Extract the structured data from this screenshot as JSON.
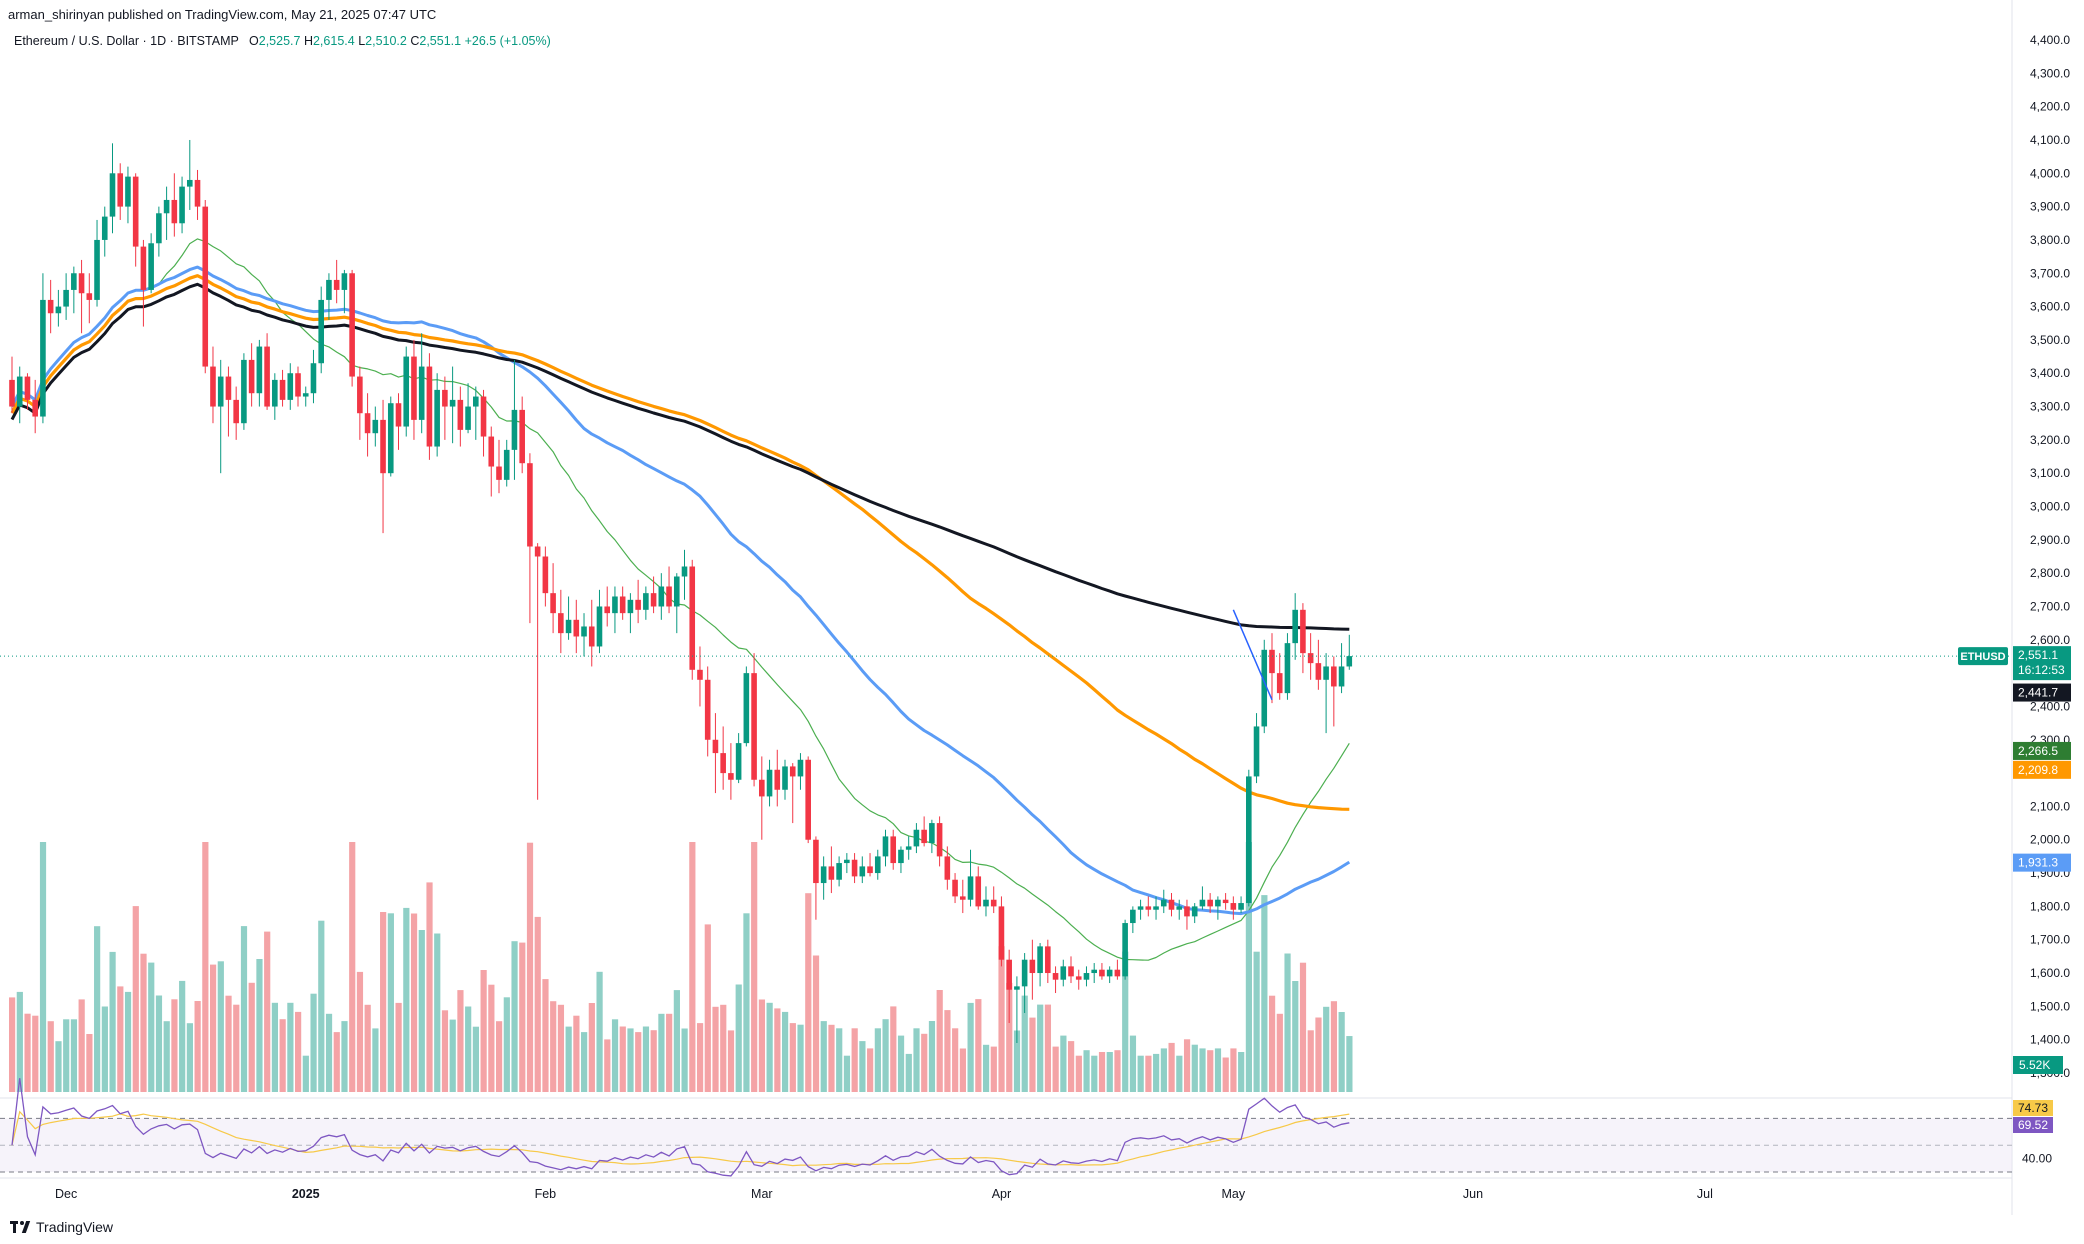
{
  "header": {
    "published": "arman_shirinyan published on TradingView.com, May 21, 2025 07:47 UTC",
    "symbol": "Ethereum / U.S. Dollar · 1D · BITSTAMP",
    "o_label": "O",
    "o": "2,525.7",
    "h_label": "H",
    "h": "2,615.4",
    "l_label": "L",
    "l": "2,510.2",
    "c_label": "C",
    "c": "2,551.1",
    "change": "+26.5 (+1.05%)"
  },
  "footer": {
    "brand": "TradingView"
  },
  "colors": {
    "up": "#089981",
    "down": "#f23645",
    "vol_up": "#8fcfc6",
    "vol_down": "#f4a3a6",
    "ma_green": "#4caf50",
    "ma_blue": "#5b9cf6",
    "ma_orange": "#ff9800",
    "ma_black": "#131722",
    "rsi": "#7e57c2",
    "rsi_ma": "#f7c948",
    "trendline": "#2962ff"
  },
  "chart_data": {
    "type": "candlestick",
    "title": "Ethereum / U.S. Dollar · 1D · BITSTAMP",
    "ylim": [
      1200,
      4450
    ],
    "y_ticks": [
      "4,400.0",
      "4,300.0",
      "4,200.0",
      "4,100.0",
      "4,000.0",
      "3,900.0",
      "3,800.0",
      "3,700.0",
      "3,600.0",
      "3,500.0",
      "3,400.0",
      "3,300.0",
      "3,200.0",
      "3,100.0",
      "3,000.0",
      "2,900.0",
      "2,800.0",
      "2,700.0",
      "2,600.0",
      "2,500.0",
      "2,400.0",
      "2,300.0",
      "2,200.0",
      "2,100.0",
      "2,000.0",
      "1,900.0",
      "1,800.0",
      "1,700.0",
      "1,600.0",
      "1,500.0",
      "1,400.0",
      "1,300.0"
    ],
    "x_ticks": [
      {
        "label": "Dec",
        "day": 7
      },
      {
        "label": "2025",
        "day": 38
      },
      {
        "label": "Feb",
        "day": 69
      },
      {
        "label": "Mar",
        "day": 97
      },
      {
        "label": "Apr",
        "day": 128
      },
      {
        "label": "May",
        "day": 158
      },
      {
        "label": "Jun",
        "day": 189
      },
      {
        "label": "Jul",
        "day": 219
      }
    ],
    "candles": [
      [
        3380,
        3450,
        3280,
        3300
      ],
      [
        3300,
        3420,
        3250,
        3390
      ],
      [
        3390,
        3400,
        3290,
        3320
      ],
      [
        3320,
        3380,
        3220,
        3270
      ],
      [
        3270,
        3700,
        3250,
        3620
      ],
      [
        3620,
        3680,
        3520,
        3580
      ],
      [
        3580,
        3650,
        3540,
        3600
      ],
      [
        3600,
        3700,
        3560,
        3650
      ],
      [
        3650,
        3720,
        3580,
        3700
      ],
      [
        3700,
        3740,
        3520,
        3640
      ],
      [
        3640,
        3700,
        3550,
        3620
      ],
      [
        3620,
        3860,
        3600,
        3800
      ],
      [
        3800,
        3900,
        3750,
        3870
      ],
      [
        3870,
        4090,
        3820,
        4000
      ],
      [
        4000,
        4030,
        3860,
        3900
      ],
      [
        3900,
        4020,
        3850,
        3990
      ],
      [
        3990,
        4000,
        3720,
        3780
      ],
      [
        3780,
        3800,
        3540,
        3650
      ],
      [
        3650,
        3820,
        3640,
        3790
      ],
      [
        3790,
        3900,
        3750,
        3880
      ],
      [
        3880,
        3960,
        3800,
        3920
      ],
      [
        3920,
        4000,
        3810,
        3850
      ],
      [
        3850,
        3990,
        3820,
        3960
      ],
      [
        3960,
        4100,
        3890,
        3980
      ],
      [
        3980,
        4010,
        3860,
        3900
      ],
      [
        3900,
        3920,
        3400,
        3420
      ],
      [
        3420,
        3480,
        3250,
        3300
      ],
      [
        3300,
        3440,
        3100,
        3390
      ],
      [
        3390,
        3420,
        3210,
        3320
      ],
      [
        3320,
        3360,
        3200,
        3250
      ],
      [
        3250,
        3460,
        3230,
        3440
      ],
      [
        3440,
        3490,
        3300,
        3340
      ],
      [
        3340,
        3500,
        3300,
        3480
      ],
      [
        3480,
        3520,
        3290,
        3300
      ],
      [
        3300,
        3400,
        3260,
        3380
      ],
      [
        3380,
        3410,
        3300,
        3320
      ],
      [
        3320,
        3430,
        3290,
        3400
      ],
      [
        3400,
        3420,
        3300,
        3330
      ],
      [
        3330,
        3360,
        3300,
        3340
      ],
      [
        3340,
        3470,
        3310,
        3430
      ],
      [
        3430,
        3660,
        3400,
        3620
      ],
      [
        3620,
        3700,
        3560,
        3680
      ],
      [
        3680,
        3740,
        3610,
        3650
      ],
      [
        3650,
        3710,
        3580,
        3700
      ],
      [
        3700,
        3710,
        3360,
        3390
      ],
      [
        3390,
        3420,
        3200,
        3280
      ],
      [
        3280,
        3340,
        3150,
        3220
      ],
      [
        3220,
        3300,
        3180,
        3260
      ],
      [
        3260,
        3320,
        2920,
        3100
      ],
      [
        3100,
        3330,
        3090,
        3310
      ],
      [
        3310,
        3340,
        3170,
        3240
      ],
      [
        3240,
        3480,
        3210,
        3450
      ],
      [
        3450,
        3500,
        3200,
        3260
      ],
      [
        3260,
        3520,
        3220,
        3420
      ],
      [
        3420,
        3460,
        3140,
        3180
      ],
      [
        3180,
        3400,
        3150,
        3350
      ],
      [
        3350,
        3390,
        3200,
        3300
      ],
      [
        3300,
        3420,
        3190,
        3320
      ],
      [
        3320,
        3360,
        3180,
        3230
      ],
      [
        3230,
        3370,
        3220,
        3300
      ],
      [
        3300,
        3360,
        3200,
        3330
      ],
      [
        3330,
        3350,
        3150,
        3210
      ],
      [
        3210,
        3240,
        3030,
        3120
      ],
      [
        3120,
        3200,
        3040,
        3080
      ],
      [
        3080,
        3200,
        3060,
        3170
      ],
      [
        3170,
        3440,
        3080,
        3290
      ],
      [
        3290,
        3330,
        3100,
        3130
      ],
      [
        3130,
        3160,
        2650,
        2880
      ],
      [
        2880,
        2890,
        2120,
        2850
      ],
      [
        2850,
        2880,
        2700,
        2740
      ],
      [
        2740,
        2830,
        2620,
        2680
      ],
      [
        2680,
        2750,
        2560,
        2620
      ],
      [
        2620,
        2730,
        2600,
        2660
      ],
      [
        2660,
        2720,
        2560,
        2610
      ],
      [
        2610,
        2680,
        2550,
        2640
      ],
      [
        2640,
        2720,
        2520,
        2580
      ],
      [
        2580,
        2750,
        2560,
        2700
      ],
      [
        2700,
        2760,
        2640,
        2680
      ],
      [
        2680,
        2760,
        2620,
        2730
      ],
      [
        2730,
        2760,
        2660,
        2680
      ],
      [
        2680,
        2740,
        2620,
        2720
      ],
      [
        2720,
        2780,
        2650,
        2690
      ],
      [
        2690,
        2760,
        2660,
        2740
      ],
      [
        2740,
        2790,
        2680,
        2700
      ],
      [
        2700,
        2800,
        2660,
        2760
      ],
      [
        2760,
        2820,
        2680,
        2700
      ],
      [
        2700,
        2800,
        2620,
        2790
      ],
      [
        2790,
        2870,
        2720,
        2820
      ],
      [
        2820,
        2840,
        2480,
        2510
      ],
      [
        2510,
        2580,
        2400,
        2480
      ],
      [
        2480,
        2520,
        2250,
        2300
      ],
      [
        2300,
        2380,
        2140,
        2260
      ],
      [
        2260,
        2340,
        2150,
        2200
      ],
      [
        2200,
        2290,
        2120,
        2180
      ],
      [
        2180,
        2320,
        2170,
        2290
      ],
      [
        2290,
        2520,
        2280,
        2500
      ],
      [
        2500,
        2560,
        2160,
        2180
      ],
      [
        2180,
        2250,
        2000,
        2130
      ],
      [
        2130,
        2240,
        2100,
        2210
      ],
      [
        2210,
        2270,
        2100,
        2150
      ],
      [
        2150,
        2240,
        2120,
        2220
      ],
      [
        2220,
        2230,
        2050,
        2190
      ],
      [
        2190,
        2260,
        2150,
        2240
      ],
      [
        2240,
        2250,
        1990,
        2000
      ],
      [
        2000,
        2010,
        1760,
        1870
      ],
      [
        1870,
        1950,
        1820,
        1920
      ],
      [
        1920,
        1980,
        1840,
        1880
      ],
      [
        1880,
        1950,
        1860,
        1930
      ],
      [
        1930,
        1960,
        1900,
        1940
      ],
      [
        1940,
        1960,
        1870,
        1890
      ],
      [
        1890,
        1950,
        1870,
        1920
      ],
      [
        1920,
        1960,
        1890,
        1900
      ],
      [
        1900,
        1970,
        1880,
        1950
      ],
      [
        1950,
        2030,
        1920,
        2010
      ],
      [
        2010,
        2030,
        1910,
        1930
      ],
      [
        1930,
        1980,
        1900,
        1970
      ],
      [
        1970,
        2010,
        1940,
        1980
      ],
      [
        1980,
        2050,
        1960,
        2030
      ],
      [
        2030,
        2070,
        1980,
        1990
      ],
      [
        1990,
        2060,
        1960,
        2050
      ],
      [
        2050,
        2070,
        1920,
        1950
      ],
      [
        1950,
        1980,
        1850,
        1880
      ],
      [
        1880,
        1900,
        1810,
        1830
      ],
      [
        1830,
        1880,
        1780,
        1820
      ],
      [
        1820,
        1970,
        1800,
        1890
      ],
      [
        1890,
        1920,
        1790,
        1800
      ],
      [
        1800,
        1860,
        1770,
        1820
      ],
      [
        1820,
        1860,
        1780,
        1800
      ],
      [
        1800,
        1830,
        1620,
        1640
      ],
      [
        1640,
        1670,
        1450,
        1550
      ],
      [
        1550,
        1590,
        1390,
        1560
      ],
      [
        1560,
        1660,
        1480,
        1640
      ],
      [
        1640,
        1700,
        1520,
        1600
      ],
      [
        1600,
        1690,
        1560,
        1680
      ],
      [
        1680,
        1700,
        1570,
        1600
      ],
      [
        1600,
        1620,
        1540,
        1580
      ],
      [
        1580,
        1640,
        1560,
        1620
      ],
      [
        1620,
        1650,
        1570,
        1590
      ],
      [
        1590,
        1610,
        1550,
        1580
      ],
      [
        1580,
        1620,
        1560,
        1600
      ],
      [
        1600,
        1630,
        1570,
        1610
      ],
      [
        1610,
        1630,
        1580,
        1590
      ],
      [
        1590,
        1620,
        1570,
        1610
      ],
      [
        1610,
        1640,
        1580,
        1590
      ],
      [
        1590,
        1760,
        1580,
        1750
      ],
      [
        1750,
        1800,
        1720,
        1790
      ],
      [
        1790,
        1820,
        1760,
        1800
      ],
      [
        1800,
        1830,
        1770,
        1790
      ],
      [
        1790,
        1830,
        1760,
        1800
      ],
      [
        1800,
        1850,
        1780,
        1820
      ],
      [
        1820,
        1840,
        1770,
        1790
      ],
      [
        1790,
        1820,
        1760,
        1800
      ],
      [
        1800,
        1820,
        1730,
        1770
      ],
      [
        1770,
        1810,
        1750,
        1800
      ],
      [
        1800,
        1860,
        1790,
        1820
      ],
      [
        1820,
        1840,
        1780,
        1800
      ],
      [
        1800,
        1830,
        1760,
        1820
      ],
      [
        1820,
        1840,
        1790,
        1810
      ],
      [
        1810,
        1830,
        1760,
        1790
      ],
      [
        1790,
        1830,
        1780,
        1810
      ],
      [
        1810,
        2210,
        1800,
        2190
      ],
      [
        2190,
        2380,
        2170,
        2340
      ],
      [
        2340,
        2600,
        2320,
        2570
      ],
      [
        2570,
        2620,
        2410,
        2500
      ],
      [
        2500,
        2560,
        2420,
        2440
      ],
      [
        2440,
        2620,
        2420,
        2590
      ],
      [
        2590,
        2740,
        2540,
        2690
      ],
      [
        2690,
        2710,
        2500,
        2560
      ],
      [
        2560,
        2620,
        2480,
        2530
      ],
      [
        2530,
        2600,
        2450,
        2480
      ],
      [
        2480,
        2560,
        2320,
        2520
      ],
      [
        2520,
        2550,
        2340,
        2460
      ],
      [
        2460,
        2590,
        2440,
        2520
      ],
      [
        2520,
        2615,
        2510,
        2551
      ]
    ],
    "volume": [],
    "ma_green": [],
    "ma_blue": [],
    "ma_orange": [],
    "ma_black": [],
    "rsi": [],
    "rsi_ma": [],
    "last_price_label": {
      "symbol": "ETHUSD",
      "price": "2,551.1",
      "countdown": "16:12:53"
    },
    "badges": [
      {
        "value": "2,441.7",
        "price": 2441.7,
        "color": "#131722"
      },
      {
        "value": "2,266.5",
        "price": 2266.5,
        "color": "#2e7d32"
      },
      {
        "value": "2,209.8",
        "price": 2209.8,
        "color": "#ff9800"
      },
      {
        "value": "1,931.3",
        "price": 1931.3,
        "color": "#5b9cf6"
      }
    ],
    "volume_label": "5.52K",
    "rsi_labels": [
      "74.73",
      "69.52",
      "40.00"
    ],
    "trendline": [
      [
        158,
        2690
      ],
      [
        163,
        2420
      ]
    ]
  }
}
